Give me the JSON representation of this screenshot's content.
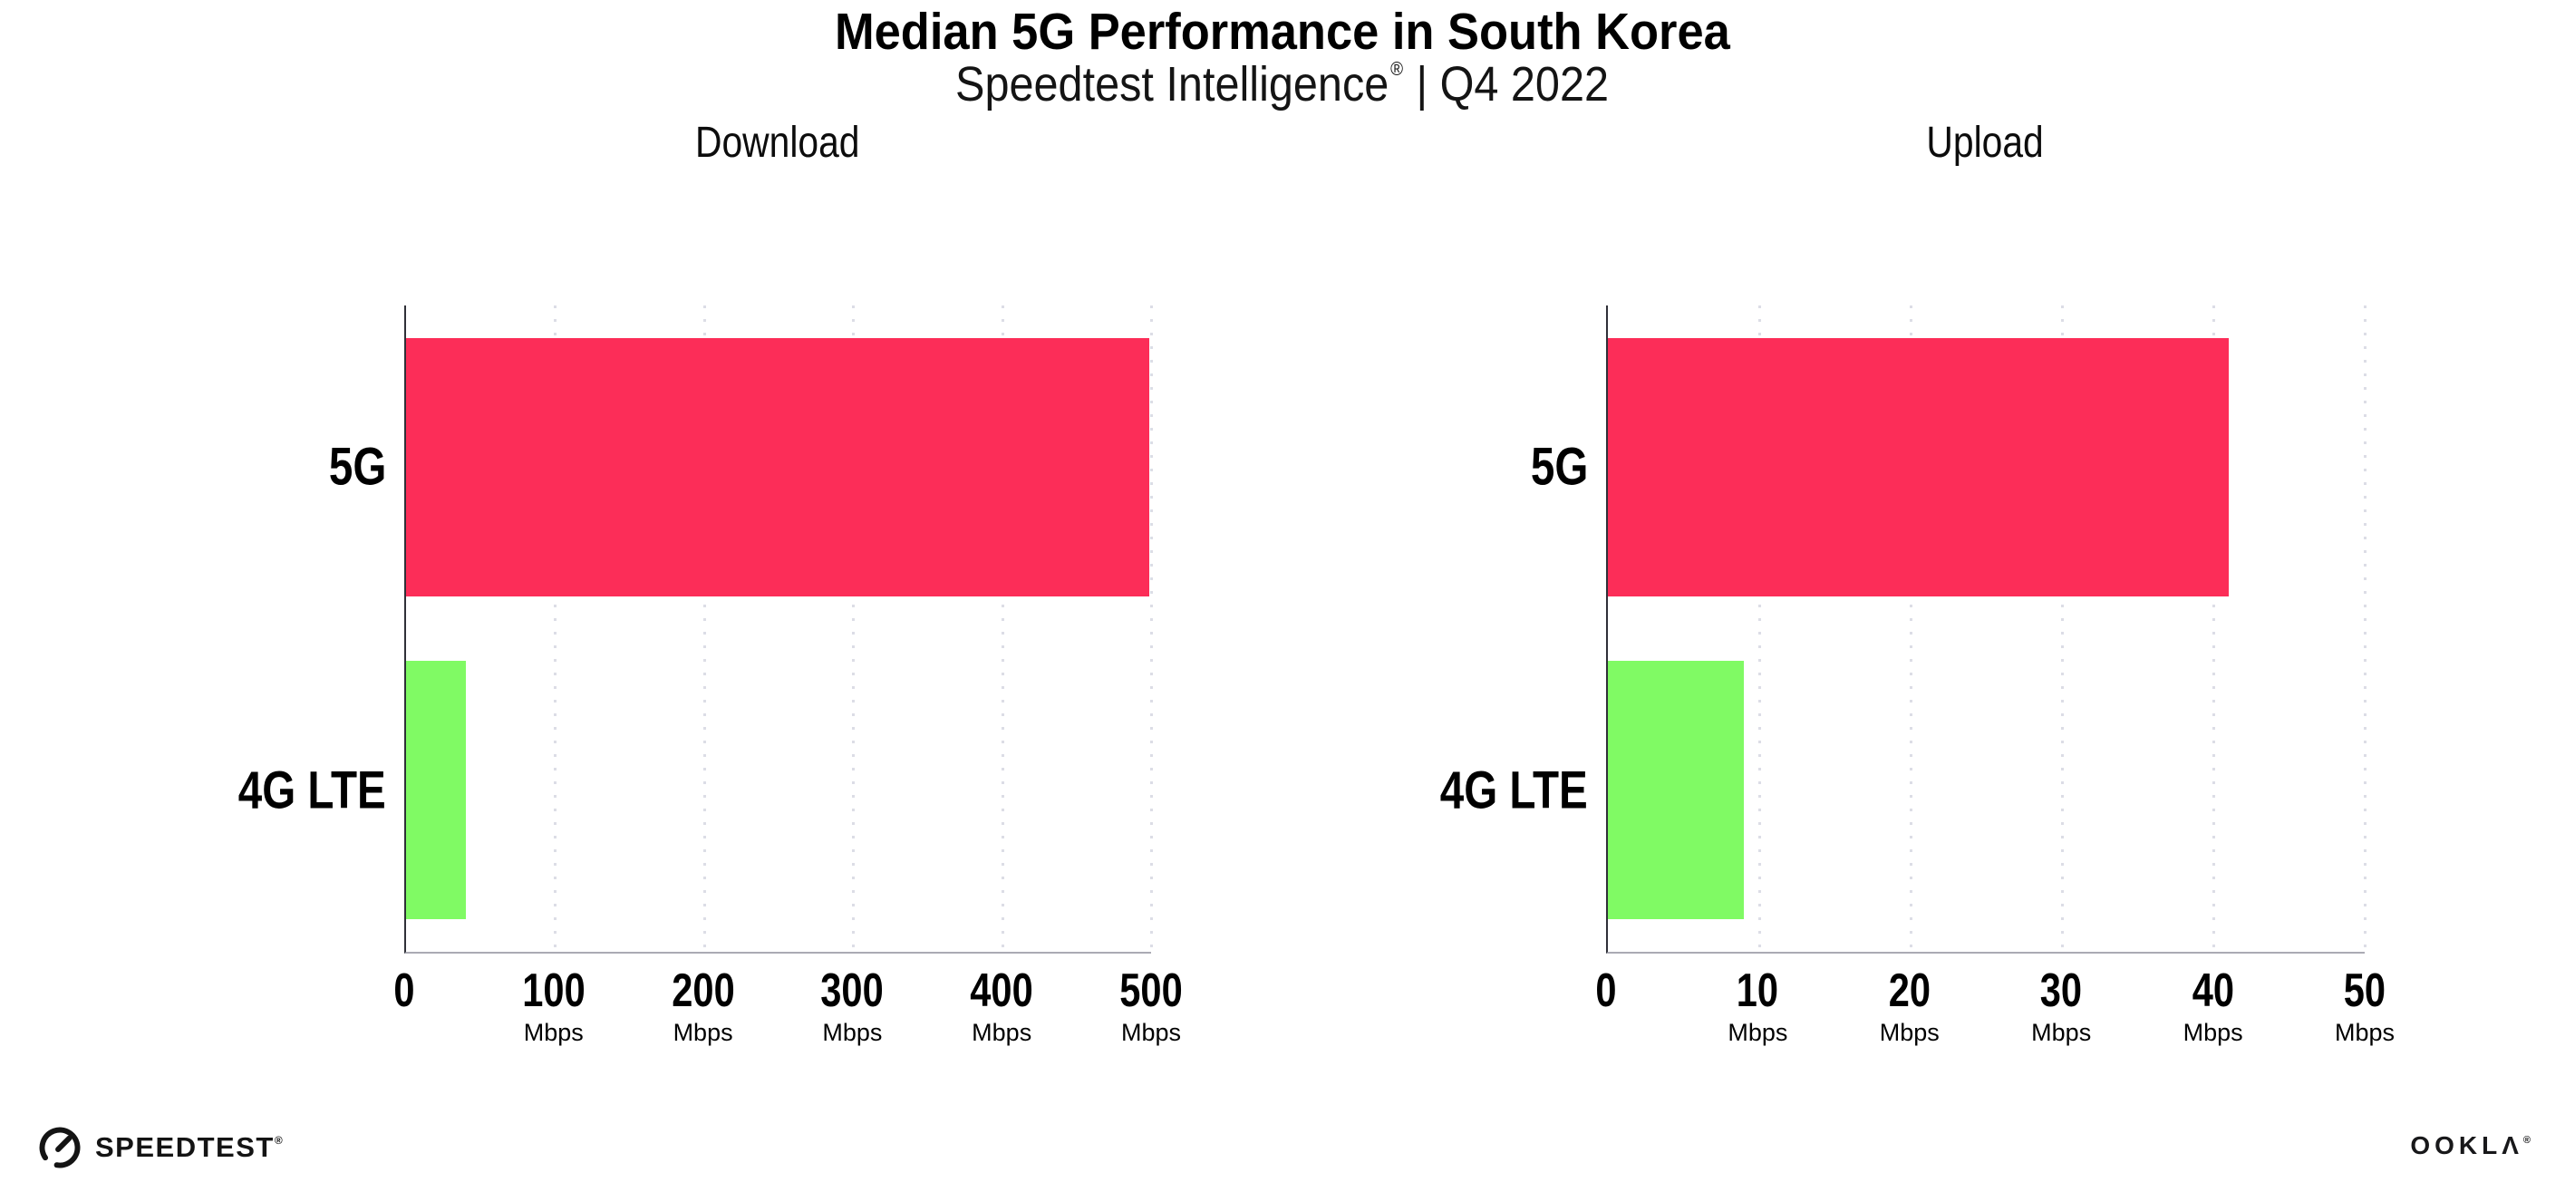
{
  "header": {
    "title": "Median 5G Performance in South Korea",
    "subtitle_brand": "Speedtest Intelligence",
    "subtitle_reg": "®",
    "subtitle_rest": "| Q4 2022"
  },
  "chart_data": [
    {
      "type": "bar",
      "orientation": "horizontal",
      "title": "Download",
      "categories": [
        "5G",
        "4G LTE"
      ],
      "values": [
        499,
        40
      ],
      "unit": "Mbps",
      "xlim": [
        0,
        500
      ],
      "xticks": [
        0,
        100,
        200,
        300,
        400,
        500
      ],
      "ticks": [
        {
          "label": "0",
          "unit": ""
        },
        {
          "label": "100",
          "unit": "Mbps"
        },
        {
          "label": "200",
          "unit": "Mbps"
        },
        {
          "label": "300",
          "unit": "Mbps"
        },
        {
          "label": "400",
          "unit": "Mbps"
        },
        {
          "label": "500",
          "unit": "Mbps"
        }
      ],
      "grid": "vertical-dotted",
      "legend": "none",
      "bar_colors": [
        "#fc2d58",
        "#80fa64"
      ]
    },
    {
      "type": "bar",
      "orientation": "horizontal",
      "title": "Upload",
      "categories": [
        "5G",
        "4G LTE"
      ],
      "values": [
        41,
        9
      ],
      "unit": "Mbps",
      "xlim": [
        0,
        50
      ],
      "xticks": [
        0,
        10,
        20,
        30,
        40,
        50
      ],
      "ticks": [
        {
          "label": "0",
          "unit": ""
        },
        {
          "label": "10",
          "unit": "Mbps"
        },
        {
          "label": "20",
          "unit": "Mbps"
        },
        {
          "label": "30",
          "unit": "Mbps"
        },
        {
          "label": "40",
          "unit": "Mbps"
        },
        {
          "label": "50",
          "unit": "Mbps"
        }
      ],
      "grid": "vertical-dotted",
      "legend": "none",
      "bar_colors": [
        "#fc2d58",
        "#80fa64"
      ]
    }
  ],
  "footer": {
    "speedtest_label": "SPEEDTEST",
    "speedtest_reg": "®",
    "ookla_label": "OOKLΛ",
    "ookla_reg": "®"
  },
  "colors": {
    "bar_5g": "#fc2d58",
    "bar_4g_lte": "#80fa64",
    "gridline": "#dcdde6",
    "axis_x": "#ababb4",
    "axis_y": "#2f3038",
    "text": "#000000",
    "background": "#ffffff"
  }
}
